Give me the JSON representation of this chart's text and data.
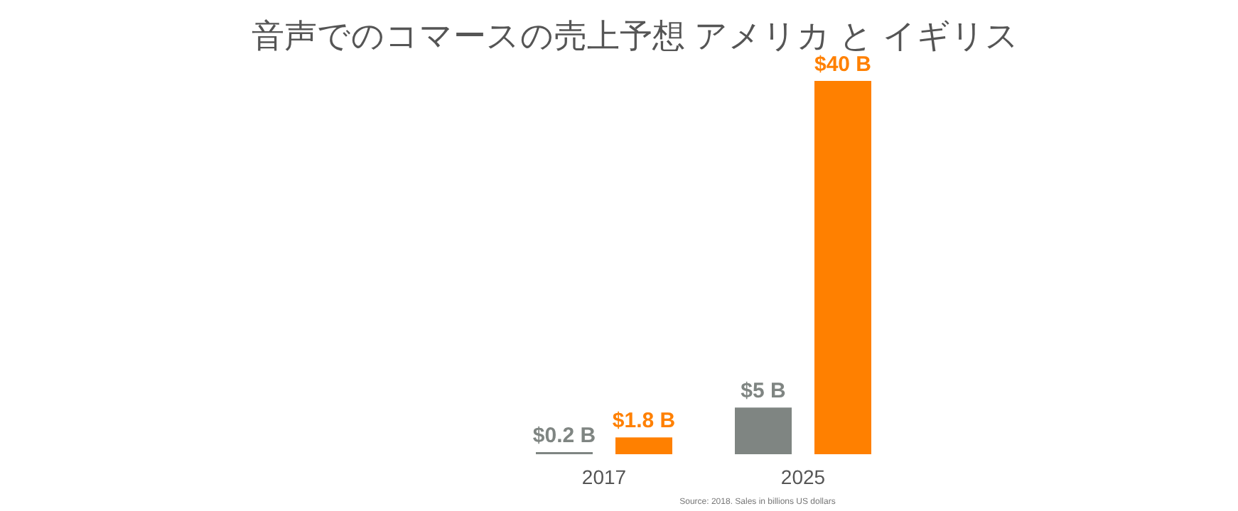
{
  "chart_data": {
    "type": "bar",
    "title": "音声でのコマースの売上予想 アメリカ と イギリス",
    "categories": [
      "2017",
      "2025"
    ],
    "series": [
      {
        "color": "#7f8582",
        "values": [
          0.2,
          5
        ],
        "value_labels": [
          "$0.2 B",
          "$5 B"
        ]
      },
      {
        "color": "#ff8000",
        "values": [
          1.8,
          40
        ],
        "value_labels": [
          "$1.8 B",
          "$40 B"
        ]
      }
    ],
    "ylim": [
      0,
      40
    ],
    "tick_labels": "x",
    "annotations": [
      "Source: 2018. Sales in billions US dollars"
    ]
  }
}
